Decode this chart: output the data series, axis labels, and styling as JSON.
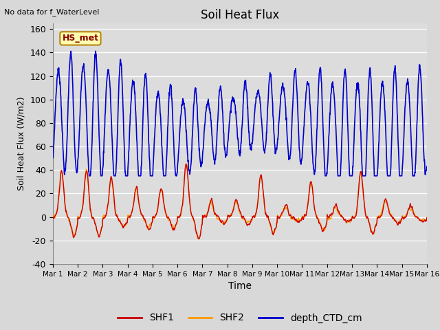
{
  "title": "Soil Heat Flux",
  "top_left_text": "No data for f_WaterLevel",
  "box_label": "HS_met",
  "xlabel": "Time",
  "ylabel": "Soil Heat Flux (W/m2)",
  "ylim": [
    -40,
    165
  ],
  "yticks": [
    -40,
    -20,
    0,
    20,
    40,
    60,
    80,
    100,
    120,
    140,
    160
  ],
  "xtick_labels": [
    "Mar 1",
    "Mar 2",
    "Mar 3",
    "Mar 4",
    "Mar 5",
    "Mar 6",
    "Mar 7",
    "Mar 8",
    "Mar 9",
    "Mar 10",
    "Mar 11",
    "Mar 12",
    "Mar 13",
    "Mar 14",
    "Mar 15",
    "Mar 16"
  ],
  "shf1_color": "#cc0000",
  "shf2_color": "#ff9900",
  "depth_color": "#0000cc",
  "legend_labels": [
    "SHF1",
    "SHF2",
    "depth_CTD_cm"
  ],
  "plot_bg_color": "#e8e8e8",
  "n_days": 15,
  "points_per_day": 96
}
